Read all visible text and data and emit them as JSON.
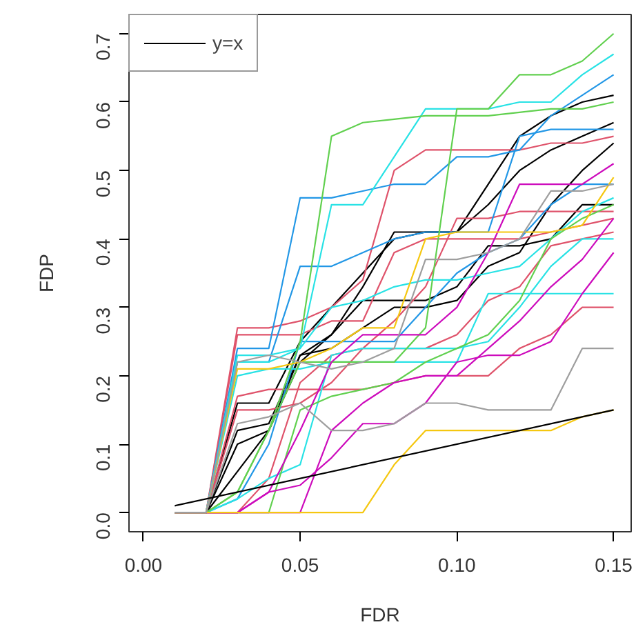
{
  "chart_data": {
    "type": "line",
    "xlabel": "FDR",
    "ylabel": "FDP",
    "legend": "top left",
    "xlim": [
      -0.0046,
      0.1556
    ],
    "ylim": [
      -0.028,
      0.728
    ],
    "xticks": [
      {
        "value": 0,
        "label": "0.00"
      },
      {
        "value": 0.05,
        "label": "0.05"
      },
      {
        "value": 0.1,
        "label": "0.10"
      },
      {
        "value": 0.15,
        "label": "0.15"
      }
    ],
    "yticks": [
      {
        "value": 0,
        "label": "0.0"
      },
      {
        "value": 0.1,
        "label": "0.1"
      },
      {
        "value": 0.2,
        "label": "0.2"
      },
      {
        "value": 0.3,
        "label": "0.3"
      },
      {
        "value": 0.4,
        "label": "0.4"
      },
      {
        "value": 0.5,
        "label": "0.5"
      },
      {
        "value": 0.6,
        "label": "0.6"
      },
      {
        "value": 0.7,
        "label": "0.7"
      }
    ],
    "x": [
      0.01,
      0.02,
      0.03,
      0.04,
      0.05,
      0.06,
      0.07,
      0.08,
      0.09,
      0.1,
      0.11,
      0.12,
      0.13,
      0.14,
      0.15
    ],
    "series": [
      {
        "color": "#000000",
        "values": [
          0,
          0,
          0.16,
          0.16,
          0.25,
          0.3,
          0.35,
          0.4,
          0.41,
          0.41,
          0.45,
          0.5,
          0.53,
          0.55,
          0.57
        ]
      },
      {
        "color": "#000000",
        "values": [
          0,
          0,
          0.12,
          0.13,
          0.23,
          0.26,
          0.33,
          0.41,
          0.41,
          0.41,
          0.48,
          0.55,
          0.58,
          0.6,
          0.61
        ]
      },
      {
        "color": "#000000",
        "values": [
          0,
          0,
          0.06,
          0.12,
          0.23,
          0.24,
          0.27,
          0.3,
          0.3,
          0.31,
          0.36,
          0.38,
          0.45,
          0.5,
          0.54
        ]
      },
      {
        "color": "#000000",
        "values": [
          0,
          0,
          0.1,
          0.12,
          0.22,
          0.26,
          0.31,
          0.31,
          0.31,
          0.33,
          0.39,
          0.39,
          0.4,
          0.45,
          0.45
        ]
      },
      {
        "color": "#DF536B",
        "values": [
          0,
          0,
          0.27,
          0.27,
          0.28,
          0.3,
          0.34,
          0.5,
          0.53,
          0.53,
          0.53,
          0.53,
          0.54,
          0.54,
          0.55
        ]
      },
      {
        "color": "#DF536B",
        "values": [
          0,
          0,
          0.26,
          0.26,
          0.26,
          0.28,
          0.28,
          0.38,
          0.4,
          0.4,
          0.4,
          0.4,
          0.41,
          0.42,
          0.43
        ]
      },
      {
        "color": "#DF536B",
        "values": [
          0,
          0,
          0.15,
          0.15,
          0.16,
          0.19,
          0.24,
          0.28,
          0.33,
          0.43,
          0.43,
          0.44,
          0.44,
          0.44,
          0.44
        ]
      },
      {
        "color": "#DF536B",
        "values": [
          0,
          0,
          0.17,
          0.18,
          0.18,
          0.18,
          0.18,
          0.19,
          0.2,
          0.2,
          0.2,
          0.24,
          0.26,
          0.3,
          0.3
        ]
      },
      {
        "color": "#DF536B",
        "values": [
          0,
          0,
          0,
          0.05,
          0.19,
          0.23,
          0.24,
          0.24,
          0.24,
          0.26,
          0.31,
          0.33,
          0.39,
          0.4,
          0.41
        ]
      },
      {
        "color": "#2297E6",
        "values": [
          0,
          0,
          0.24,
          0.24,
          0.46,
          0.46,
          0.47,
          0.48,
          0.48,
          0.52,
          0.52,
          0.53,
          0.58,
          0.61,
          0.64
        ]
      },
      {
        "color": "#2297E6",
        "values": [
          0,
          0,
          0.22,
          0.22,
          0.36,
          0.36,
          0.38,
          0.4,
          0.41,
          0.41,
          0.41,
          0.55,
          0.56,
          0.56,
          0.56
        ]
      },
      {
        "color": "#2297E6",
        "values": [
          0,
          0,
          0.02,
          0.1,
          0.25,
          0.25,
          0.25,
          0.25,
          0.3,
          0.35,
          0.38,
          0.4,
          0.45,
          0.48,
          0.48
        ]
      },
      {
        "color": "#28E2E5",
        "values": [
          0,
          0,
          0.23,
          0.23,
          0.24,
          0.45,
          0.45,
          0.52,
          0.59,
          0.59,
          0.59,
          0.6,
          0.6,
          0.64,
          0.67
        ]
      },
      {
        "color": "#28E2E5",
        "values": [
          0,
          0,
          0.22,
          0.22,
          0.24,
          0.3,
          0.31,
          0.33,
          0.34,
          0.34,
          0.35,
          0.36,
          0.4,
          0.44,
          0.46
        ]
      },
      {
        "color": "#28E2E5",
        "values": [
          0,
          0,
          0.2,
          0.21,
          0.21,
          0.22,
          0.22,
          0.22,
          0.22,
          0.22,
          0.32,
          0.32,
          0.32,
          0.32,
          0.32
        ]
      },
      {
        "color": "#28E2E5",
        "values": [
          0,
          0,
          0.02,
          0.05,
          0.07,
          0.23,
          0.24,
          0.24,
          0.24,
          0.24,
          0.25,
          0.3,
          0.36,
          0.4,
          0.4
        ]
      },
      {
        "color": "#61D04F",
        "values": [
          0,
          0,
          0.03,
          0.12,
          0.25,
          0.55,
          0.57,
          0.575,
          0.58,
          0.58,
          0.58,
          0.585,
          0.59,
          0.59,
          0.6
        ]
      },
      {
        "color": "#61D04F",
        "values": [
          0,
          0,
          0.03,
          0.12,
          0.22,
          0.22,
          0.22,
          0.22,
          0.27,
          0.59,
          0.59,
          0.64,
          0.64,
          0.66,
          0.7
        ]
      },
      {
        "color": "#61D04F",
        "values": [
          0,
          0,
          0,
          0,
          0.15,
          0.17,
          0.18,
          0.19,
          0.22,
          0.24,
          0.26,
          0.31,
          0.4,
          0.43,
          0.45
        ]
      },
      {
        "color": "#CD0BBC",
        "values": [
          0,
          0,
          0,
          0.03,
          0.12,
          0.22,
          0.26,
          0.26,
          0.26,
          0.3,
          0.38,
          0.48,
          0.48,
          0.48,
          0.51
        ]
      },
      {
        "color": "#CD0BBC",
        "values": [
          0,
          0,
          0,
          0,
          0,
          0.12,
          0.16,
          0.19,
          0.2,
          0.2,
          0.24,
          0.28,
          0.33,
          0.37,
          0.43
        ]
      },
      {
        "color": "#CD0BBC",
        "values": [
          0,
          0,
          0,
          0.03,
          0.04,
          0.08,
          0.13,
          0.13,
          0.16,
          0.22,
          0.23,
          0.23,
          0.25,
          0.32,
          0.38
        ]
      },
      {
        "color": "#F5C710",
        "values": [
          0,
          0,
          0.21,
          0.21,
          0.22,
          0.24,
          0.27,
          0.27,
          0.4,
          0.41,
          0.41,
          0.41,
          0.41,
          0.42,
          0.49
        ]
      },
      {
        "color": "#F5C710",
        "values": [
          0,
          0,
          0,
          0,
          0,
          0,
          0,
          0.07,
          0.12,
          0.12,
          0.12,
          0.12,
          0.12,
          0.14,
          0.15
        ]
      },
      {
        "color": "#9E9E9E",
        "values": [
          0,
          0,
          0.13,
          0.14,
          0.16,
          0.12,
          0.12,
          0.13,
          0.16,
          0.16,
          0.15,
          0.15,
          0.15,
          0.24,
          0.24
        ]
      },
      {
        "color": "#9E9E9E",
        "values": [
          0,
          0,
          0.22,
          0.23,
          0.22,
          0.21,
          0.22,
          0.24,
          0.37,
          0.37,
          0.38,
          0.4,
          0.47,
          0.47,
          0.48
        ]
      },
      {
        "name": "y=x",
        "color": "#000000",
        "x": [
          0.01,
          0.15
        ],
        "values": [
          0.01,
          0.15
        ]
      }
    ]
  }
}
